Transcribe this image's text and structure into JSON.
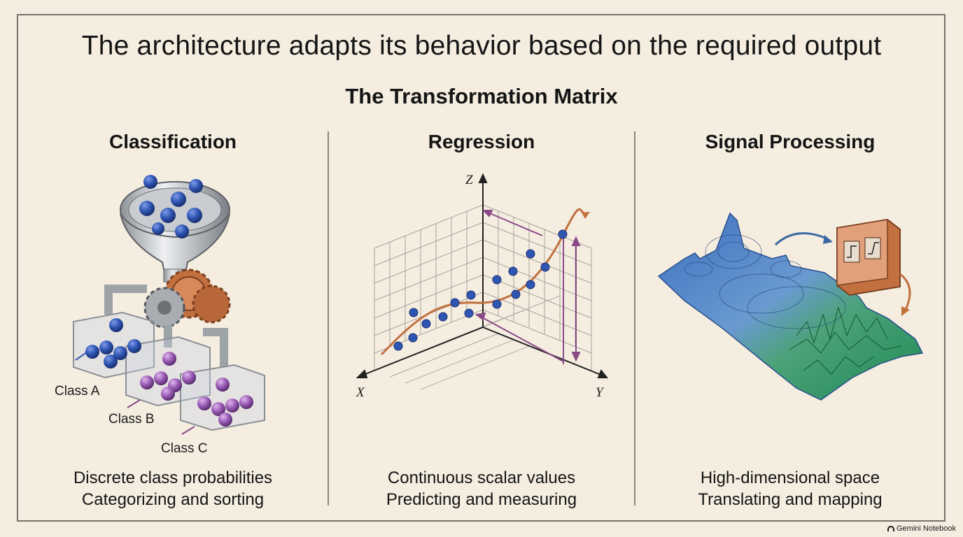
{
  "header": {
    "title": "The architecture adapts its behavior based on the required output",
    "subtitle": "The Transformation Matrix"
  },
  "columns": [
    {
      "title": "Classification",
      "caption_line1": "Discrete class probabilities",
      "caption_line2": "Categorizing and sorting",
      "class_labels": [
        "Class A",
        "Class B",
        "Class C"
      ]
    },
    {
      "title": "Regression",
      "caption_line1": "Continuous scalar values",
      "caption_line2": "Predicting and measuring",
      "axes": {
        "x": "X",
        "y": "Y",
        "z": "Z"
      }
    },
    {
      "title": "Signal Processing",
      "caption_line1": "High-dimensional space",
      "caption_line2": "Translating and mapping"
    }
  ],
  "colors": {
    "background": "#f4ede0",
    "blue_ball": "#2f55b3",
    "purple_ball": "#9a5cb5",
    "copper": "#c2703f",
    "arrow_purple": "#8a4a86",
    "terrain_blue": "#4a78c0",
    "terrain_green": "#2f9a5e"
  },
  "icons": [
    "funnel-icon",
    "gear-icon",
    "bin-icon",
    "chip-icon",
    "logo-icon"
  ],
  "watermark": {
    "text": "Gemini Notebook"
  }
}
